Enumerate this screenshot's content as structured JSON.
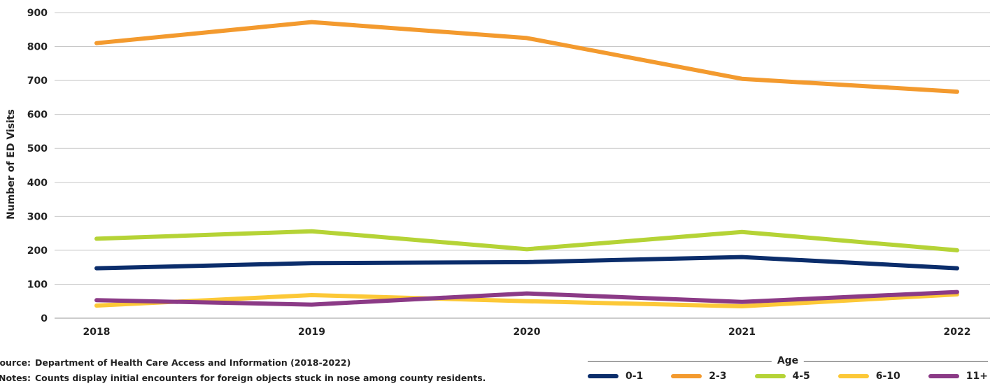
{
  "chart_data": {
    "type": "line",
    "categories": [
      "2018",
      "2019",
      "2020",
      "2021",
      "2022"
    ],
    "series": [
      {
        "name": "0-1",
        "color": "#0b2d6b",
        "values": [
          147,
          162,
          165,
          180,
          147
        ]
      },
      {
        "name": "2-3",
        "color": "#f39a2e",
        "values": [
          810,
          872,
          825,
          705,
          667
        ]
      },
      {
        "name": "4-5",
        "color": "#b5d336",
        "values": [
          234,
          256,
          203,
          254,
          200
        ]
      },
      {
        "name": "6-10",
        "color": "#fcc837",
        "values": [
          37,
          68,
          50,
          35,
          70
        ]
      },
      {
        "name": "11+",
        "color": "#8b3a86",
        "values": [
          53,
          40,
          73,
          48,
          77
        ]
      }
    ],
    "ylabel": "Number of ED Visits",
    "ylim": [
      0,
      900
    ],
    "yticks": [
      0,
      100,
      200,
      300,
      400,
      500,
      600,
      700,
      800,
      900
    ],
    "grid": true,
    "legend": {
      "title": "Age",
      "placement": "bottom-right"
    }
  },
  "notes": {
    "source_label": "Source:",
    "source_text": "Department of Health Care Access and Information (2018-2022)",
    "notes_label": "Notes:",
    "notes_text": "Counts display initial encounters for foreign objects stuck in nose among county residents."
  }
}
